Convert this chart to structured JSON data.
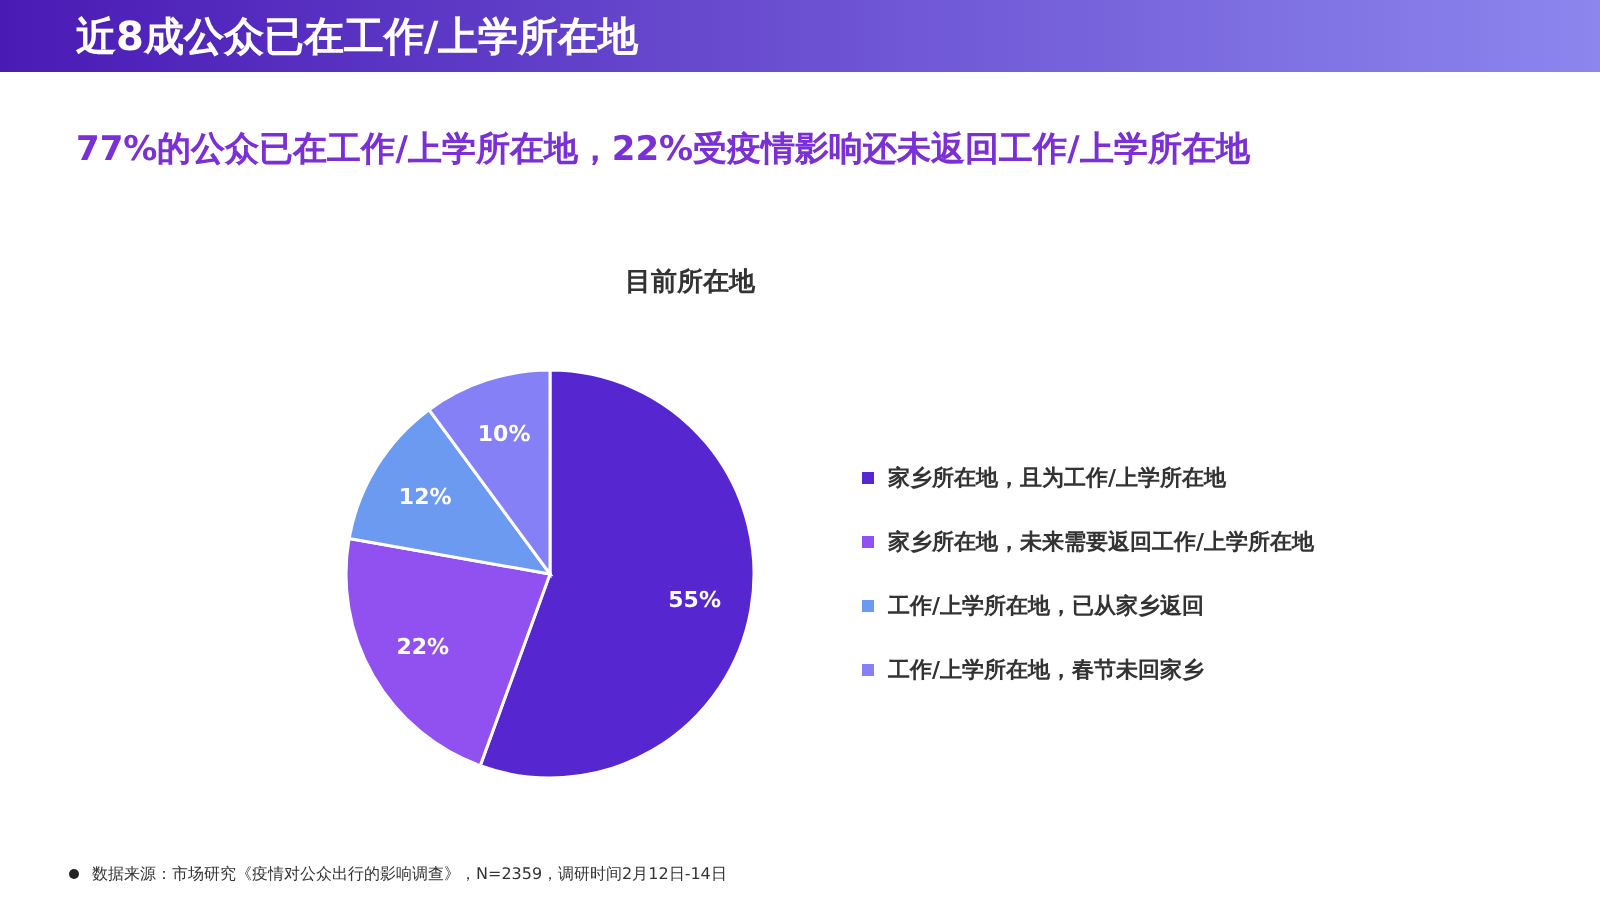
{
  "chart_data": {
    "type": "pie",
    "title": "近8成公众已在工作/上学所在地",
    "subtitle": "77%的公众已在工作/上学所在地，22%受疫情影响还未返回工作/上学所在地",
    "xlabel": "目前所在地",
    "categories": [
      "家乡所在地，且为工作/上学所在地",
      "家乡所在地，未来需要返回工作/上学所在地",
      "工作/上学所在地，已从家乡返回",
      "工作/上学所在地，春节未回家乡"
    ],
    "values": [
      55,
      22,
      12,
      10
    ],
    "colors": [
      "#5626d0",
      "#9150f0",
      "#6b9af0",
      "#8580f5"
    ],
    "value_labels": [
      "55%",
      "22%",
      "12%",
      "10%"
    ],
    "legend": "right",
    "annotations": [
      "数据来源：市场研究《疫情对公众出行的影响调查》，N=2359，调研时间2月12日-14日"
    ]
  }
}
